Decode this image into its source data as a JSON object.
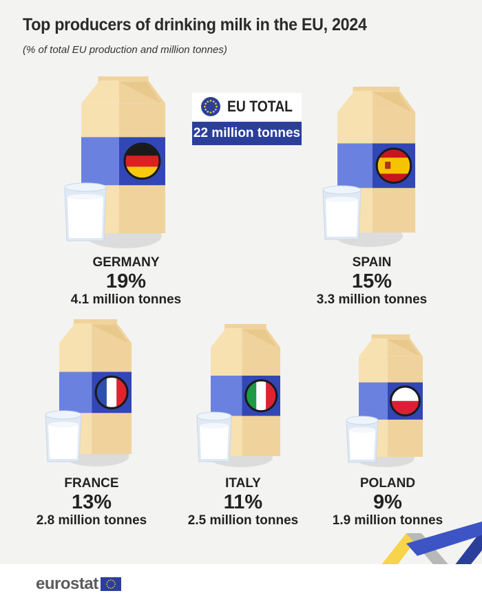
{
  "title": "Top producers of drinking milk in the EU, 2024",
  "subtitle": "(% of total EU production and million tonnes)",
  "eu_total": {
    "label": "EU TOTAL",
    "value": "22 million tonnes"
  },
  "countries": [
    {
      "name": "GERMANY",
      "pct_label": "19%",
      "tonnes_label": "4.1 million tonnes"
    },
    {
      "name": "SPAIN",
      "pct_label": "15%",
      "tonnes_label": "3.3 million tonnes"
    },
    {
      "name": "FRANCE",
      "pct_label": "13%",
      "tonnes_label": "2.8 million tonnes"
    },
    {
      "name": "ITALY",
      "pct_label": "11%",
      "tonnes_label": "2.5 million tonnes"
    },
    {
      "name": "POLAND",
      "pct_label": "9%",
      "tonnes_label": "1.9 million tonnes"
    }
  ],
  "brand": "eurostat",
  "colors": {
    "carton_light": "#f7e1b0",
    "carton_dark": "#f0d39c",
    "band_light": "#6b81e0",
    "band_dark": "#3247b5",
    "eu_blue": "#2b3f9a",
    "eu_yellow": "#f6cf2a"
  },
  "chart_data": {
    "type": "bar",
    "categories": [
      "GERMANY",
      "SPAIN",
      "FRANCE",
      "ITALY",
      "POLAND"
    ],
    "series": [
      {
        "name": "% of total EU production",
        "values": [
          19,
          15,
          13,
          11,
          9
        ]
      },
      {
        "name": "million tonnes",
        "values": [
          4.1,
          3.3,
          2.8,
          2.5,
          1.9
        ]
      }
    ],
    "total_million_tonnes": 22,
    "title": "Top producers of drinking milk in the EU, 2024",
    "subtitle": "(% of total EU production and million tonnes)"
  }
}
